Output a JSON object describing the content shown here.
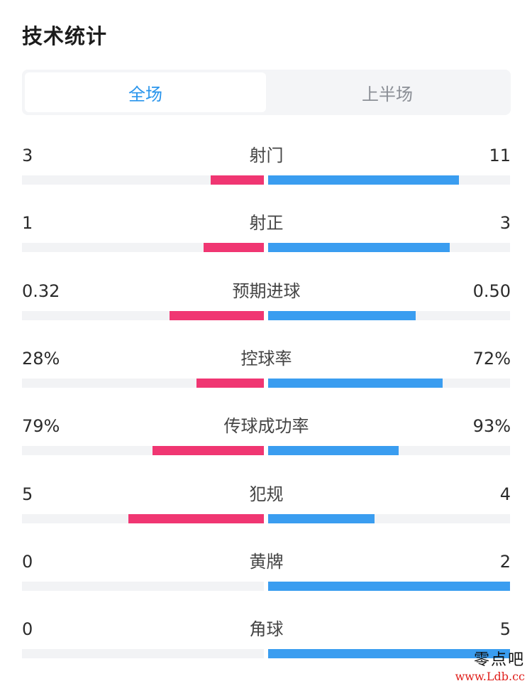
{
  "title": "技术统计",
  "tabs": [
    {
      "label": "全场",
      "active": true
    },
    {
      "label": "上半场",
      "active": false
    }
  ],
  "colors": {
    "home": "#f03672",
    "away": "#3a9df0",
    "track": "#f2f3f5",
    "active_tab": "#2a95ec"
  },
  "stats": [
    {
      "label": "射门",
      "home": "3",
      "away": "11",
      "home_fill": 0.22,
      "away_fill": 0.79
    },
    {
      "label": "射正",
      "home": "1",
      "away": "3",
      "home_fill": 0.25,
      "away_fill": 0.75
    },
    {
      "label": "预期进球",
      "home": "0.32",
      "away": "0.50",
      "home_fill": 0.39,
      "away_fill": 0.61
    },
    {
      "label": "控球率",
      "home": "28%",
      "away": "72%",
      "home_fill": 0.28,
      "away_fill": 0.72
    },
    {
      "label": "传球成功率",
      "home": "79%",
      "away": "93%",
      "home_fill": 0.46,
      "away_fill": 0.54
    },
    {
      "label": "犯规",
      "home": "5",
      "away": "4",
      "home_fill": 0.56,
      "away_fill": 0.44
    },
    {
      "label": "黄牌",
      "home": "0",
      "away": "2",
      "home_fill": 0.0,
      "away_fill": 1.0
    },
    {
      "label": "角球",
      "home": "0",
      "away": "5",
      "home_fill": 0.0,
      "away_fill": 1.0
    }
  ],
  "watermark": {
    "brand": "零点吧",
    "url": "www.Ldb.cc"
  }
}
